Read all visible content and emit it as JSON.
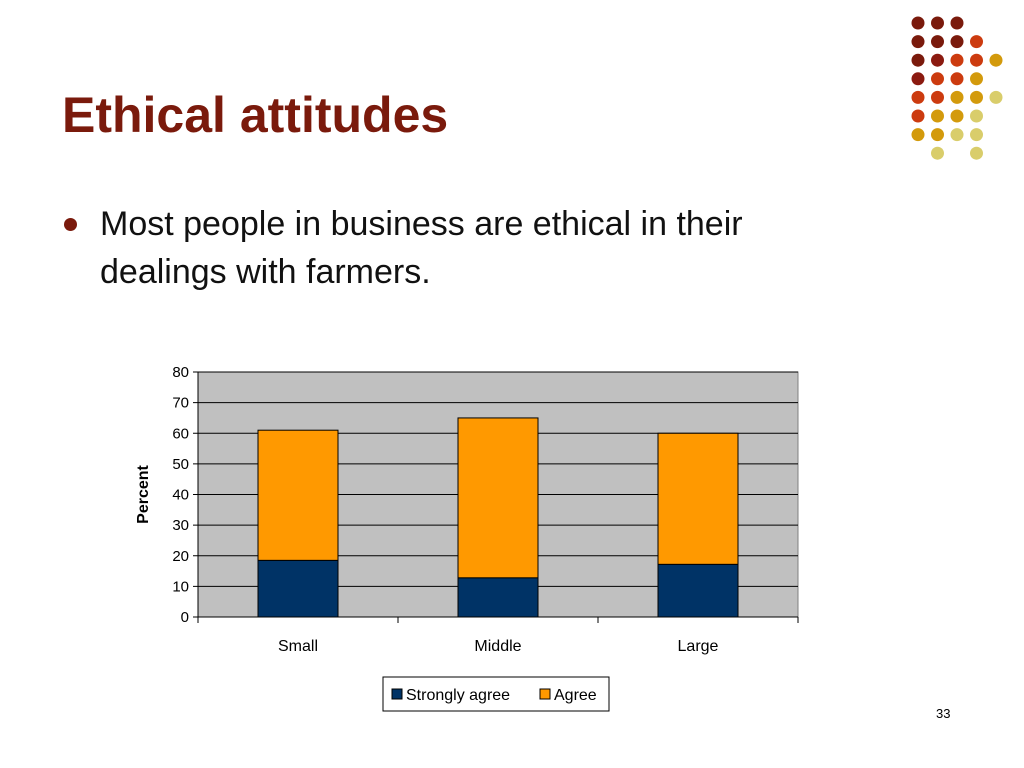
{
  "slide": {
    "title": "Ethical attitudes",
    "bullet": "Most people in business are ethical in their dealings with farmers.",
    "page_number": "33"
  },
  "colors": {
    "title": "#7a1a0c",
    "plot_background": "#c0c0c0",
    "strongly_agree": "#003366",
    "agree": "#ff9900",
    "dot_palette": [
      "#7a1a0c",
      "#8b1a10",
      "#cc3b0f",
      "#d39a0c",
      "#d9cd6b"
    ]
  },
  "decoration": {
    "rows": [
      [
        "#7a1a0c",
        "#7a1a0c",
        "#7a1a0c",
        null,
        null
      ],
      [
        "#7a1a0c",
        "#7a1a0c",
        "#7a1a0c",
        "#cc3b0f",
        null
      ],
      [
        "#7a1a0c",
        "#8b1a10",
        "#cc3b0f",
        "#cc3b0f",
        "#d39a0c"
      ],
      [
        "#8b1a10",
        "#cc3b0f",
        "#cc3b0f",
        "#d39a0c",
        null
      ],
      [
        "#cc3b0f",
        "#cc3b0f",
        "#d39a0c",
        "#d39a0c",
        "#d9cd6b"
      ],
      [
        "#cc3b0f",
        "#d39a0c",
        "#d39a0c",
        "#d9cd6b",
        null
      ],
      [
        "#d39a0c",
        "#d39a0c",
        "#d9cd6b",
        "#d9cd6b",
        null
      ],
      [
        null,
        "#d9cd6b",
        null,
        "#d9cd6b",
        null
      ]
    ]
  },
  "chart_data": {
    "type": "bar",
    "stacked": true,
    "categories": [
      "Small",
      "Middle",
      "Large"
    ],
    "series": [
      {
        "name": "Strongly agree",
        "values": [
          18.5,
          12.8,
          17.2
        ]
      },
      {
        "name": "Agree",
        "values": [
          42.5,
          52.2,
          42.8
        ]
      }
    ],
    "ylabel": "Percent",
    "ylim": [
      0,
      80
    ],
    "yticks": [
      0,
      10,
      20,
      30,
      40,
      50,
      60,
      70,
      80
    ],
    "grid": true,
    "legend": "bottom"
  }
}
